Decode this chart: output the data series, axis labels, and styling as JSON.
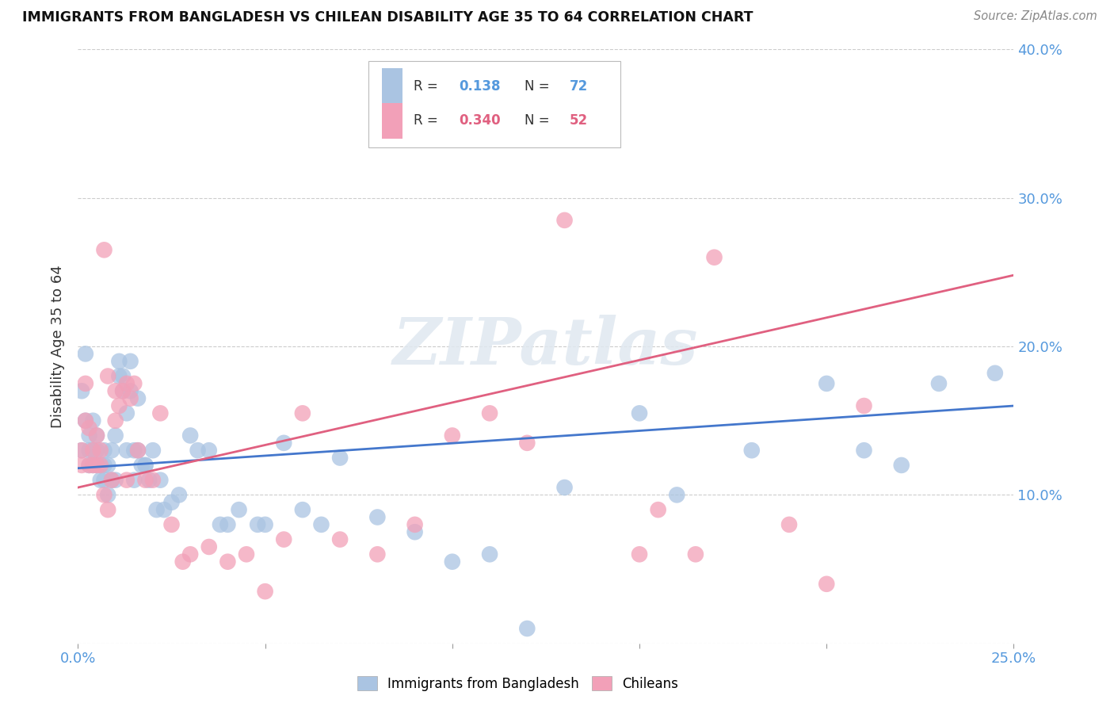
{
  "title": "IMMIGRANTS FROM BANGLADESH VS CHILEAN DISABILITY AGE 35 TO 64 CORRELATION CHART",
  "source": "Source: ZipAtlas.com",
  "ylabel": "Disability Age 35 to 64",
  "xlim": [
    0.0,
    0.25
  ],
  "ylim": [
    0.0,
    0.4
  ],
  "xticks": [
    0.0,
    0.05,
    0.1,
    0.15,
    0.2,
    0.25
  ],
  "yticks": [
    0.0,
    0.1,
    0.2,
    0.3,
    0.4
  ],
  "blue_R": 0.138,
  "blue_N": 72,
  "pink_R": 0.34,
  "pink_N": 52,
  "blue_color": "#aac4e2",
  "pink_color": "#f2a0b8",
  "blue_line_color": "#4477cc",
  "pink_line_color": "#e06080",
  "watermark_text": "ZIPatlas",
  "blue_line_start_y": 0.118,
  "blue_line_end_y": 0.16,
  "pink_line_start_y": 0.105,
  "pink_line_end_y": 0.248,
  "blue_scatter_x": [
    0.001,
    0.001,
    0.002,
    0.002,
    0.003,
    0.003,
    0.003,
    0.004,
    0.004,
    0.004,
    0.005,
    0.005,
    0.005,
    0.006,
    0.006,
    0.007,
    0.007,
    0.007,
    0.008,
    0.008,
    0.009,
    0.009,
    0.01,
    0.01,
    0.011,
    0.011,
    0.012,
    0.012,
    0.013,
    0.013,
    0.014,
    0.014,
    0.015,
    0.015,
    0.016,
    0.016,
    0.017,
    0.018,
    0.018,
    0.019,
    0.02,
    0.021,
    0.022,
    0.023,
    0.025,
    0.027,
    0.03,
    0.032,
    0.035,
    0.038,
    0.04,
    0.043,
    0.048,
    0.05,
    0.055,
    0.06,
    0.065,
    0.07,
    0.08,
    0.09,
    0.1,
    0.11,
    0.12,
    0.13,
    0.15,
    0.16,
    0.18,
    0.2,
    0.21,
    0.22,
    0.23,
    0.245
  ],
  "blue_scatter_y": [
    0.17,
    0.13,
    0.15,
    0.195,
    0.13,
    0.14,
    0.12,
    0.15,
    0.13,
    0.12,
    0.13,
    0.12,
    0.14,
    0.12,
    0.11,
    0.13,
    0.12,
    0.11,
    0.12,
    0.1,
    0.13,
    0.11,
    0.14,
    0.11,
    0.19,
    0.18,
    0.17,
    0.18,
    0.13,
    0.155,
    0.17,
    0.19,
    0.13,
    0.11,
    0.13,
    0.165,
    0.12,
    0.12,
    0.12,
    0.11,
    0.13,
    0.09,
    0.11,
    0.09,
    0.095,
    0.1,
    0.14,
    0.13,
    0.13,
    0.08,
    0.08,
    0.09,
    0.08,
    0.08,
    0.135,
    0.09,
    0.08,
    0.125,
    0.085,
    0.075,
    0.055,
    0.06,
    0.01,
    0.105,
    0.155,
    0.1,
    0.13,
    0.175,
    0.13,
    0.12,
    0.175,
    0.182
  ],
  "pink_scatter_x": [
    0.001,
    0.001,
    0.002,
    0.002,
    0.003,
    0.003,
    0.004,
    0.004,
    0.005,
    0.005,
    0.006,
    0.006,
    0.007,
    0.007,
    0.008,
    0.008,
    0.009,
    0.01,
    0.01,
    0.011,
    0.012,
    0.013,
    0.013,
    0.014,
    0.015,
    0.016,
    0.018,
    0.02,
    0.022,
    0.025,
    0.028,
    0.03,
    0.035,
    0.04,
    0.045,
    0.05,
    0.055,
    0.06,
    0.07,
    0.08,
    0.09,
    0.1,
    0.11,
    0.12,
    0.13,
    0.15,
    0.155,
    0.165,
    0.17,
    0.19,
    0.2,
    0.21
  ],
  "pink_scatter_y": [
    0.12,
    0.13,
    0.15,
    0.175,
    0.12,
    0.145,
    0.13,
    0.12,
    0.14,
    0.12,
    0.13,
    0.12,
    0.1,
    0.265,
    0.09,
    0.18,
    0.11,
    0.17,
    0.15,
    0.16,
    0.17,
    0.11,
    0.175,
    0.165,
    0.175,
    0.13,
    0.11,
    0.11,
    0.155,
    0.08,
    0.055,
    0.06,
    0.065,
    0.055,
    0.06,
    0.035,
    0.07,
    0.155,
    0.07,
    0.06,
    0.08,
    0.14,
    0.155,
    0.135,
    0.285,
    0.06,
    0.09,
    0.06,
    0.26,
    0.08,
    0.04,
    0.16
  ]
}
